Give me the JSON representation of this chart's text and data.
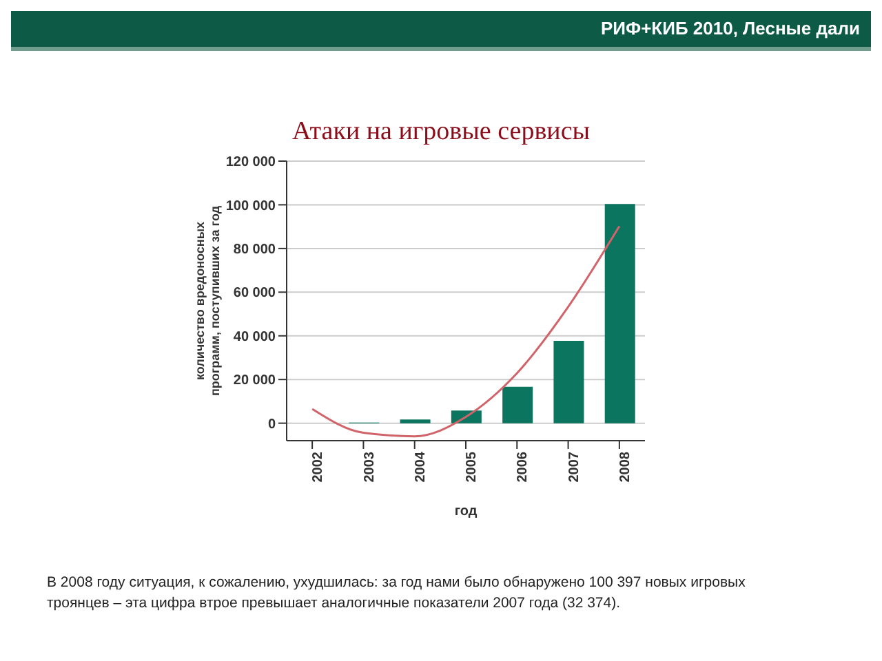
{
  "chart_data": {
    "type": "bar",
    "title": "Атаки на игровые сервисы",
    "subtitle": "РИФ+КИБ 2010, Лесные дали",
    "xlabel": "год",
    "ylabel": "количество вредоносных программ, поступивших за год",
    "categories": [
      "2002",
      "2003",
      "2004",
      "2005",
      "2006",
      "2007",
      "2008"
    ],
    "series": [
      {
        "color": "#0b7560",
        "values": [
          0,
          300,
          1700,
          5800,
          16700,
          37700,
          100400
        ]
      },
      {
        "type": "line",
        "color": "#d0646a",
        "values": [
          6500,
          -4400,
          -6000,
          2900,
          22900,
          53300,
          90200
        ]
      }
    ],
    "ylim": [
      -8000,
      120000
    ],
    "yticks": [
      {
        "value": 0,
        "label": "0"
      },
      {
        "value": 20000,
        "label": "20 000"
      },
      {
        "value": 40000,
        "label": "40 000"
      },
      {
        "value": 60000,
        "label": "60 000"
      },
      {
        "value": 80000,
        "label": "80 000"
      },
      {
        "value": 100000,
        "label": "100 000"
      },
      {
        "value": 120000,
        "label": "120 000"
      }
    ],
    "grid": "y",
    "legend": false,
    "marker": "none",
    "annotations": [
      "В 2008 году ситуация, к сожалению, ухудшилась: за год нами было обнаружено 100 397 новых игровых троянцев – эта цифра втрое превышает аналогичные показатели 2007 года (32 374)."
    ]
  }
}
